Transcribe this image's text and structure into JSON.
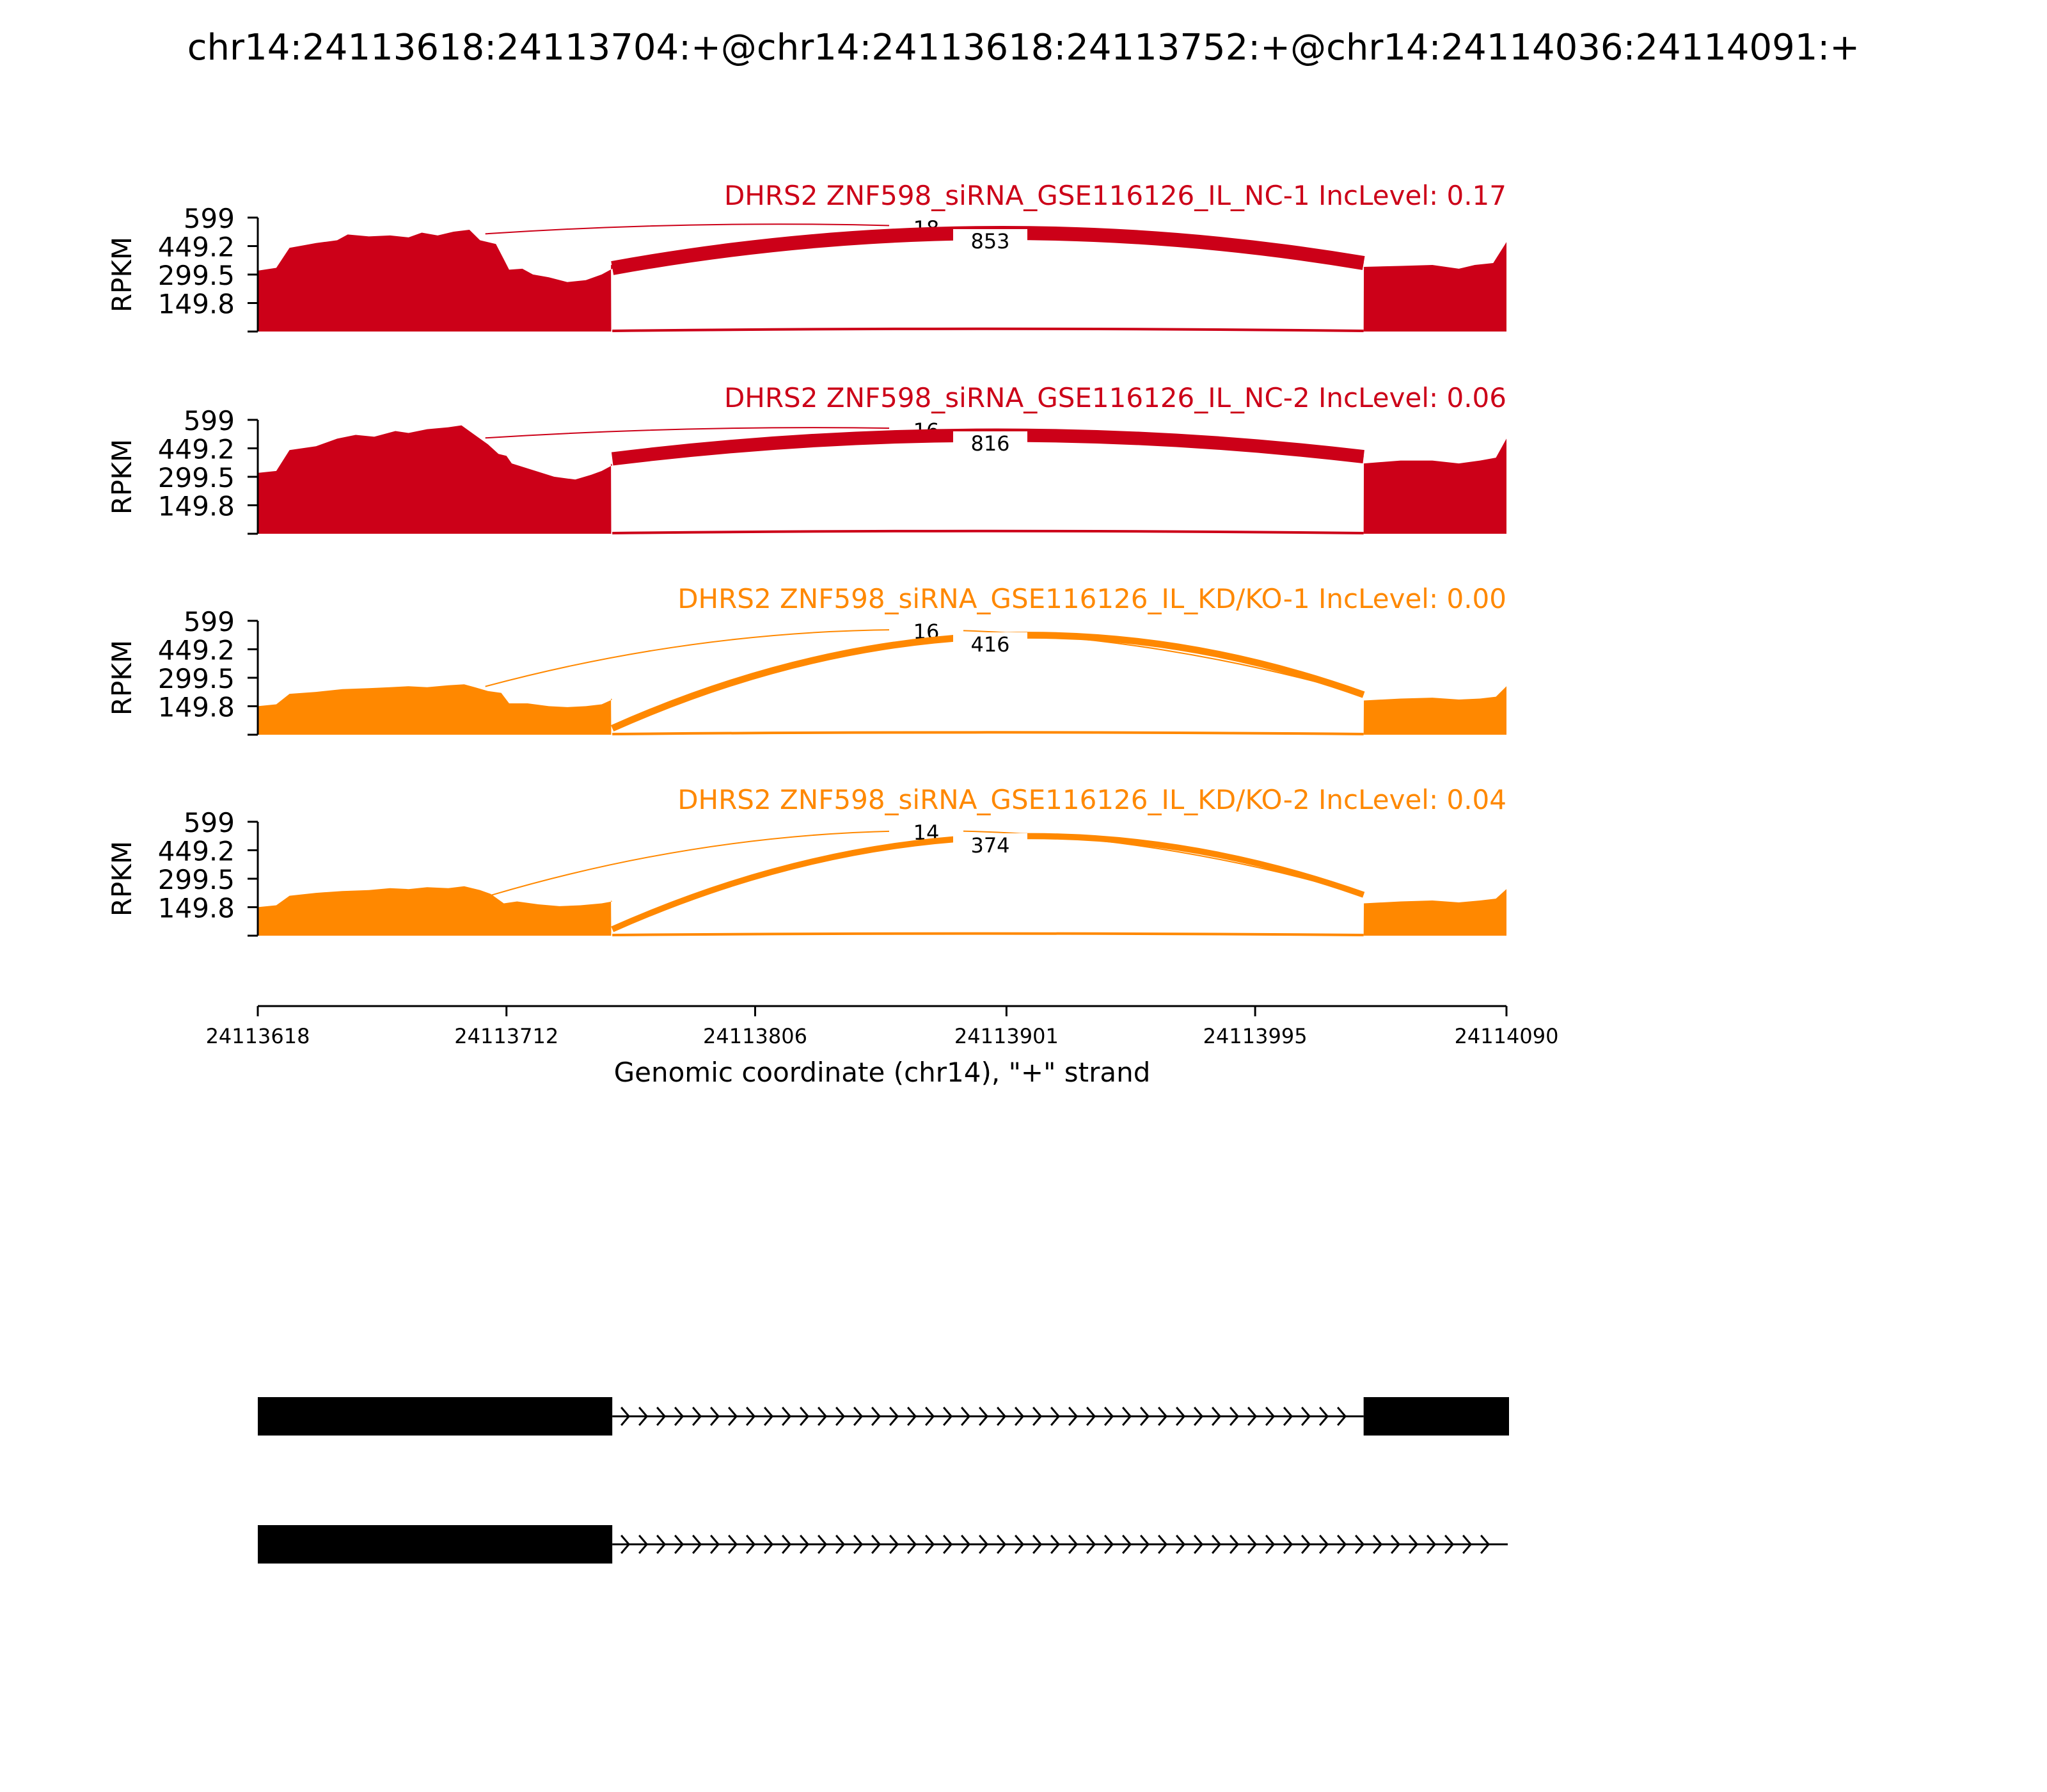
{
  "title": "chr14:24113618:24113704:+@chr14:24113618:24113752:+@chr14:24114036:24114091:+",
  "colors": {
    "nc": "#cc0018",
    "kd": "#ff8800",
    "axis": "#000000",
    "model": "#000000"
  },
  "chart_data": {
    "type": "area",
    "title": "chr14:24113618:24113704:+@chr14:24113618:24113752:+@chr14:24114036:24114091:+",
    "xlabel": "Genomic coordinate (chr14), \"+\" strand",
    "ylabel": "RPKM",
    "xlim": [
      24113618,
      24114090
    ],
    "xticks": [
      "24113618",
      "24113712",
      "24113806",
      "24113901",
      "24113995",
      "24114090"
    ],
    "ylim": [
      0,
      599
    ],
    "yticks": [
      "599",
      "449.2",
      "299.5",
      "149.8"
    ],
    "tracks": [
      {
        "label": "DHRS2 ZNF598_siRNA_GSE116126_IL_NC-1 IncLevel: 0.17",
        "group": "nc",
        "coverage": [
          [
            24113618,
            320
          ],
          [
            24113625,
            335
          ],
          [
            24113630,
            440
          ],
          [
            24113640,
            465
          ],
          [
            24113648,
            480
          ],
          [
            24113652,
            510
          ],
          [
            24113660,
            500
          ],
          [
            24113668,
            505
          ],
          [
            24113675,
            495
          ],
          [
            24113680,
            520
          ],
          [
            24113686,
            505
          ],
          [
            24113692,
            525
          ],
          [
            24113698,
            535
          ],
          [
            24113702,
            480
          ],
          [
            24113708,
            460
          ],
          [
            24113711,
            380
          ],
          [
            24113713,
            325
          ],
          [
            24113718,
            330
          ],
          [
            24113722,
            300
          ],
          [
            24113728,
            285
          ],
          [
            24113735,
            260
          ],
          [
            24113742,
            270
          ],
          [
            24113748,
            300
          ],
          [
            24113752,
            330
          ],
          [
            24113755,
            345
          ],
          [
            24113751.5,
            350
          ],
          [
            24113751.6,
            0
          ],
          [
            24114036,
            0
          ],
          [
            24114036.1,
            340
          ],
          [
            24114050,
            345
          ],
          [
            24114062,
            350
          ],
          [
            24114072,
            330
          ],
          [
            24114078,
            350
          ],
          [
            24114085,
            360
          ],
          [
            24114090,
            470
          ]
        ],
        "intron_coverage": 12,
        "junctions": [
          {
            "count": "18",
            "from": 24113704,
            "to": 24114036,
            "weight": 18
          },
          {
            "count": "853",
            "from": 24113752,
            "to": 24114036,
            "weight": 853
          }
        ]
      },
      {
        "label": "DHRS2 ZNF598_siRNA_GSE116126_IL_NC-2 IncLevel: 0.06",
        "group": "nc",
        "coverage": [
          [
            24113618,
            320
          ],
          [
            24113625,
            330
          ],
          [
            24113630,
            440
          ],
          [
            24113640,
            460
          ],
          [
            24113648,
            500
          ],
          [
            24113655,
            520
          ],
          [
            24113662,
            510
          ],
          [
            24113670,
            540
          ],
          [
            24113675,
            530
          ],
          [
            24113682,
            550
          ],
          [
            24113690,
            560
          ],
          [
            24113695,
            570
          ],
          [
            24113700,
            520
          ],
          [
            24113705,
            470
          ],
          [
            24113709,
            420
          ],
          [
            24113712,
            410
          ],
          [
            24113714,
            370
          ],
          [
            24113722,
            335
          ],
          [
            24113730,
            300
          ],
          [
            24113738,
            285
          ],
          [
            24113744,
            310
          ],
          [
            24113748,
            330
          ],
          [
            24113752,
            360
          ],
          [
            24113751.5,
            370
          ],
          [
            24113751.6,
            0
          ],
          [
            24114036,
            0
          ],
          [
            24114036.1,
            370
          ],
          [
            24114050,
            385
          ],
          [
            24114062,
            385
          ],
          [
            24114072,
            370
          ],
          [
            24114080,
            385
          ],
          [
            24114086,
            400
          ],
          [
            24114090,
            500
          ]
        ],
        "intron_coverage": 12,
        "junctions": [
          {
            "count": "16",
            "from": 24113704,
            "to": 24114036,
            "weight": 16
          },
          {
            "count": "816",
            "from": 24113752,
            "to": 24114036,
            "weight": 816
          }
        ]
      },
      {
        "label": "DHRS2 ZNF598_siRNA_GSE116126_IL_KD/KO-1 IncLevel: 0.00",
        "group": "kd",
        "coverage": [
          [
            24113618,
            150
          ],
          [
            24113625,
            160
          ],
          [
            24113630,
            215
          ],
          [
            24113640,
            225
          ],
          [
            24113650,
            240
          ],
          [
            24113660,
            245
          ],
          [
            24113668,
            250
          ],
          [
            24113675,
            255
          ],
          [
            24113682,
            250
          ],
          [
            24113690,
            260
          ],
          [
            24113696,
            265
          ],
          [
            24113700,
            250
          ],
          [
            24113705,
            230
          ],
          [
            24113710,
            220
          ],
          [
            24113713,
            165
          ],
          [
            24113720,
            165
          ],
          [
            24113728,
            150
          ],
          [
            24113735,
            145
          ],
          [
            24113742,
            150
          ],
          [
            24113748,
            160
          ],
          [
            24113752,
            185
          ],
          [
            24113751.5,
            190
          ],
          [
            24113751.6,
            0
          ],
          [
            24114036,
            0
          ],
          [
            24114036.1,
            180
          ],
          [
            24114050,
            190
          ],
          [
            24114062,
            195
          ],
          [
            24114072,
            185
          ],
          [
            24114080,
            190
          ],
          [
            24114086,
            200
          ],
          [
            24114090,
            255
          ]
        ],
        "intron_coverage": 8,
        "junctions": [
          {
            "count": "16",
            "from": 24113704,
            "to": 24114036,
            "weight": 16
          },
          {
            "count": "416",
            "from": 24113752,
            "to": 24114036,
            "weight": 416
          }
        ]
      },
      {
        "label": "DHRS2 ZNF598_siRNA_GSE116126_IL_KD/KO-2 IncLevel: 0.04",
        "group": "kd",
        "coverage": [
          [
            24113618,
            150
          ],
          [
            24113625,
            160
          ],
          [
            24113630,
            210
          ],
          [
            24113640,
            225
          ],
          [
            24113650,
            235
          ],
          [
            24113660,
            240
          ],
          [
            24113668,
            250
          ],
          [
            24113675,
            245
          ],
          [
            24113682,
            255
          ],
          [
            24113690,
            250
          ],
          [
            24113696,
            260
          ],
          [
            24113702,
            240
          ],
          [
            24113706,
            220
          ],
          [
            24113711,
            170
          ],
          [
            24113716,
            180
          ],
          [
            24113724,
            165
          ],
          [
            24113732,
            155
          ],
          [
            24113740,
            160
          ],
          [
            24113748,
            170
          ],
          [
            24113752,
            180
          ],
          [
            24113751.5,
            185
          ],
          [
            24113751.6,
            0
          ],
          [
            24114036,
            0
          ],
          [
            24114036.1,
            170
          ],
          [
            24114050,
            180
          ],
          [
            24114062,
            185
          ],
          [
            24114072,
            175
          ],
          [
            24114080,
            185
          ],
          [
            24114086,
            195
          ],
          [
            24114090,
            245
          ]
        ],
        "intron_coverage": 6,
        "junctions": [
          {
            "count": "14",
            "from": 24113704,
            "to": 24114036,
            "weight": 14
          },
          {
            "count": "374",
            "from": 24113752,
            "to": 24114036,
            "weight": 374
          }
        ]
      }
    ],
    "isoforms": [
      {
        "exons": [
          [
            24113618,
            24113752
          ],
          [
            24114036,
            24114091
          ]
        ],
        "intron": [
          24113752,
          24114036
        ]
      },
      {
        "exons": [
          [
            24113618,
            24113752
          ]
        ],
        "intron": [
          24113752,
          24114091
        ]
      }
    ]
  }
}
